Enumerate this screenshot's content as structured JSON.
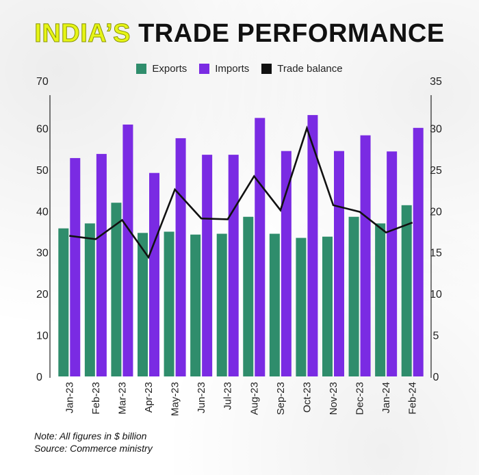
{
  "title": {
    "highlight": "INDIA’S",
    "rest": "TRADE PERFORMANCE"
  },
  "colors": {
    "exports": "#2f8d6c",
    "imports": "#7a2be3",
    "balance": "#111111",
    "title_highlight": "#e6f516"
  },
  "notes": {
    "line1": "Note: All figures in $ billion",
    "line2": "Source: Commerce ministry"
  },
  "chart_data": {
    "type": "bar",
    "title": "INDIA’S TRADE PERFORMANCE",
    "categories": [
      "Jan-23",
      "Feb-23",
      "Mar-23",
      "Apr-23",
      "May-23",
      "Jun-23",
      "Jul-23",
      "Aug-23",
      "Sep-23",
      "Oct-23",
      "Nov-23",
      "Dec-23",
      "Jan-24",
      "Feb-24"
    ],
    "series": [
      {
        "name": "Exports",
        "type": "bar",
        "axis": "left",
        "values": [
          35.8,
          37.0,
          42.0,
          34.7,
          35.0,
          34.3,
          34.5,
          38.6,
          34.5,
          33.5,
          33.8,
          38.6,
          37.0,
          41.4
        ]
      },
      {
        "name": "Imports",
        "type": "bar",
        "axis": "left",
        "values": [
          52.8,
          53.8,
          60.9,
          49.2,
          57.6,
          53.6,
          53.6,
          62.5,
          54.5,
          63.2,
          54.5,
          58.3,
          54.4,
          60.1
        ]
      },
      {
        "name": "Trade balance",
        "type": "line",
        "axis": "right",
        "values": [
          17.0,
          16.6,
          18.9,
          14.4,
          22.6,
          19.1,
          19.0,
          24.2,
          20.1,
          30.0,
          20.7,
          19.9,
          17.4,
          18.6
        ]
      }
    ],
    "y_left": {
      "min": 0,
      "max": 70,
      "ticks": [
        "0",
        "10",
        "20",
        "30",
        "40",
        "50",
        "60",
        "70"
      ]
    },
    "y_right": {
      "min": 0,
      "max": 35,
      "ticks": [
        "0",
        "5",
        "10",
        "15",
        "20",
        "25",
        "30",
        "35"
      ]
    },
    "legend": [
      "Exports",
      "Imports",
      "Trade balance"
    ],
    "legend_position": "top-center",
    "grid": false
  }
}
